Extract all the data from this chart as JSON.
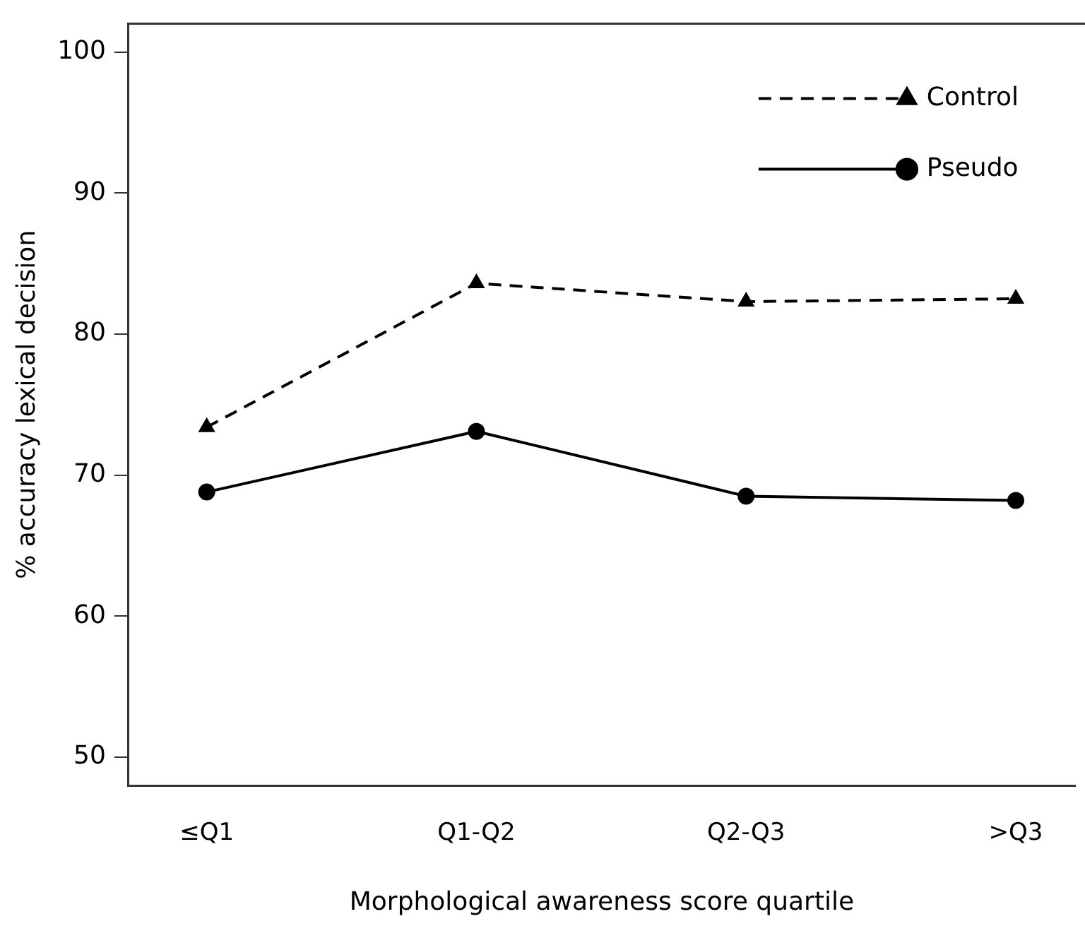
{
  "chart_data": {
    "type": "line",
    "xlabel": "Morphological awareness score quartile",
    "ylabel": "% accuracy lexical decision",
    "categories": [
      "≤Q1",
      "Q1-Q2",
      "Q2-Q3",
      ">Q3"
    ],
    "series": [
      {
        "name": "Control",
        "color": "#000000",
        "values": [
          73.4,
          83.6,
          82.3,
          82.5
        ],
        "marker": "triangle",
        "line_style": "dashed"
      },
      {
        "name": "Pseudo",
        "color": "#000000",
        "values": [
          68.8,
          73.1,
          68.5,
          68.2
        ],
        "marker": "circle",
        "line_style": "solid"
      }
    ],
    "ylim": [
      48,
      102
    ],
    "yticks": [
      50,
      60,
      70,
      80,
      90,
      100
    ],
    "grid": false,
    "legend": "top right"
  }
}
